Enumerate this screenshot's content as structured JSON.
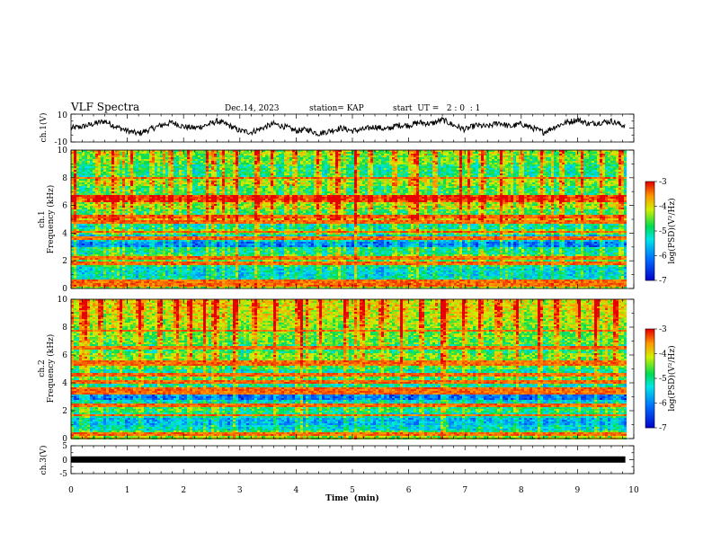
{
  "header": {
    "title": "VLF Spectra",
    "date": "Dec.14, 2023",
    "station": "station= KAP",
    "start_ut": "start  UT =   2 : 0  : 1"
  },
  "chart_data": [
    {
      "type": "line",
      "panel": "ch1-waveform",
      "ylabel": "ch.1(V)",
      "ylim": [
        -10,
        10
      ],
      "ytick_labels": [
        "10",
        "-10"
      ],
      "xlim": [
        0,
        9.85
      ],
      "x": [
        0,
        0.2,
        0.4,
        0.6,
        0.8,
        1.0,
        1.2,
        1.4,
        1.6,
        1.8,
        2.0,
        2.2,
        2.4,
        2.6,
        2.8,
        3.0,
        3.2,
        3.4,
        3.6,
        3.8,
        4.0,
        4.2,
        4.4,
        4.6,
        4.8,
        5.0,
        5.2,
        5.4,
        5.6,
        5.8,
        6.0,
        6.2,
        6.4,
        6.6,
        6.8,
        7.0,
        7.2,
        7.4,
        7.6,
        7.8,
        8.0,
        8.2,
        8.4,
        8.6,
        8.8,
        9.0,
        9.2,
        9.4,
        9.6,
        9.8
      ],
      "values": [
        0,
        1,
        3,
        5,
        1,
        -2,
        -4,
        -1,
        2,
        4,
        1,
        0,
        2,
        5,
        2,
        -2,
        -3,
        0,
        3,
        1,
        -2,
        -1,
        -4,
        -2,
        0,
        -2,
        -1,
        1,
        -1,
        2,
        2,
        4,
        3,
        6,
        2,
        -1,
        2,
        1,
        4,
        1,
        3,
        0,
        -3,
        1,
        4,
        6,
        3,
        4,
        5,
        2
      ]
    },
    {
      "type": "heatmap",
      "panel": "ch1-spectrogram",
      "ylabel": "ch.1\nFrequency (kHz)",
      "ylim": [
        0,
        10
      ],
      "ytick_labels": [
        "0",
        "2",
        "4",
        "6",
        "8",
        "10"
      ],
      "xlim": [
        0,
        9.85
      ],
      "colorbar": {
        "label": "log(PSD)(V²/Hz)",
        "range": [
          -7,
          -3
        ],
        "tick_labels": [
          "-3",
          "-4",
          "-5",
          "-6",
          "-7"
        ]
      },
      "bands_khz": [
        0,
        0.25,
        0.5,
        1.0,
        1.6,
        2.0,
        2.5,
        3.0,
        3.5,
        4.0,
        4.3,
        4.7,
        5.0,
        5.4,
        5.8,
        6.3,
        6.8,
        7.5,
        8.0,
        9.0,
        9.7,
        10.0
      ],
      "band_log_psd": [
        -4.4,
        -4.2,
        -5.3,
        -5.4,
        -5.0,
        -4.7,
        -5.1,
        -6.1,
        -5.6,
        -4.7,
        -5.2,
        -4.6,
        -3.9,
        -4.8,
        -4.3,
        -3.4,
        -4.8,
        -4.4,
        -5.0,
        -4.6,
        -4.4
      ],
      "lines_khz": [
        0.3,
        0.55,
        1.9,
        2.25,
        3.7,
        4.15,
        4.9,
        5.2,
        5.35,
        6.55,
        6.65,
        8.05
      ],
      "bursts_min": [
        0.05,
        0.45,
        0.72,
        1.05,
        1.42,
        1.75,
        2.08,
        2.4,
        2.52,
        2.68,
        2.9,
        3.3,
        3.55,
        3.95,
        4.35,
        4.7,
        5.05,
        5.3,
        5.72,
        6.1,
        6.45,
        6.9,
        7.05,
        7.3,
        7.62,
        7.98,
        8.35,
        8.7,
        9.05,
        9.4,
        9.72
      ]
    },
    {
      "type": "heatmap",
      "panel": "ch2-spectrogram",
      "ylabel": "ch.2\nFrequency (kHz)",
      "ylim": [
        0,
        10
      ],
      "ytick_labels": [
        "0",
        "2",
        "4",
        "6",
        "8",
        "10"
      ],
      "xlim": [
        0,
        9.85
      ],
      "colorbar": {
        "label": "log(PSD)(V²/Hz)",
        "range": [
          -7,
          -3
        ],
        "tick_labels": [
          "-3",
          "-4",
          "-5",
          "-6",
          "-7"
        ]
      },
      "bands_khz": [
        0,
        0.3,
        0.6,
        1.0,
        1.5,
        2.0,
        2.4,
        2.8,
        3.3,
        3.7,
        4.1,
        4.6,
        5.0,
        5.6,
        6.2,
        6.8,
        7.4,
        8.0,
        8.6,
        9.3,
        10.0
      ],
      "band_log_psd": [
        -4.4,
        -4.8,
        -5.4,
        -5.7,
        -5.2,
        -4.9,
        -5.4,
        -6.2,
        -6.0,
        -5.2,
        -4.8,
        -5.2,
        -4.7,
        -4.5,
        -4.9,
        -4.6,
        -4.5,
        -4.3,
        -4.1,
        -4.0
      ],
      "lines_khz": [
        0.35,
        1.75,
        2.45,
        3.35,
        3.65,
        4.1,
        4.65,
        5.35,
        5.55,
        6.55,
        7.8
      ],
      "bursts_min": [
        0.22,
        0.5,
        0.85,
        1.2,
        1.55,
        1.85,
        2.1,
        2.35,
        2.55,
        2.9,
        3.25,
        3.6,
        4.05,
        4.4,
        4.85,
        5.15,
        5.5,
        5.85,
        6.2,
        6.6,
        6.95,
        7.25,
        7.55,
        7.9,
        8.3,
        8.6,
        9.0,
        9.3,
        9.65
      ]
    },
    {
      "type": "line",
      "panel": "ch3-waveform",
      "ylabel": "ch.3(V)",
      "xlabel": "Time  (min)",
      "ylim": [
        -5,
        5
      ],
      "ytick_labels": [
        "5",
        "0",
        "-5"
      ],
      "xlim": [
        0,
        9.85
      ],
      "x": [
        0,
        9.85
      ],
      "values": [
        0.05,
        0.05
      ]
    }
  ],
  "time_axis": {
    "range": [
      0,
      10
    ],
    "tick_labels": [
      "0",
      "1",
      "2",
      "3",
      "4",
      "5",
      "6",
      "7",
      "8",
      "9",
      "10"
    ]
  }
}
